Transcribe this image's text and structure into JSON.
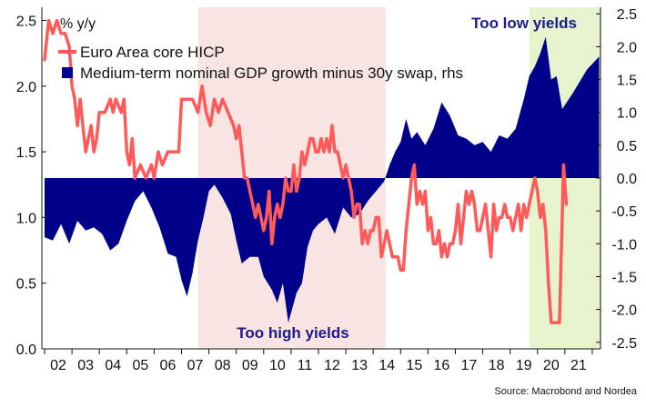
{
  "chart_data": {
    "type": "line",
    "left_axis_title": "% y/y",
    "ylim_left": [
      0.0,
      2.6
    ],
    "ylim_right": [
      -2.6,
      2.6
    ],
    "left_ticks": [
      "0.0",
      "0.5",
      "1.0",
      "1.5",
      "2.0",
      "2.5"
    ],
    "right_ticks": [
      "-2.5",
      "-2.0",
      "-1.5",
      "-1.0",
      "-0.5",
      "0.0",
      "0.5",
      "1.0",
      "1.5",
      "2.0",
      "2.5"
    ],
    "x_tick_labels": [
      "02",
      "03",
      "04",
      "05",
      "06",
      "07",
      "08",
      "09",
      "10",
      "11",
      "12",
      "13",
      "14",
      "15",
      "16",
      "17",
      "18",
      "19",
      "20",
      "21"
    ],
    "x_range": [
      2001.9,
      2022.3
    ],
    "legend_position": "top-left",
    "shaded_regions": [
      {
        "start": 2007.6,
        "end": 2014.45,
        "color": "#f9e4e4"
      },
      {
        "start": 2019.7,
        "end": 2022.3,
        "color": "#e6f3cc"
      }
    ],
    "annotations": [
      {
        "text": "Too high yields",
        "x": 2011.0,
        "y_left": 0.13,
        "color": "#1a1a8c"
      },
      {
        "text": "Too low yields",
        "x": 2019.5,
        "y_left": 2.62,
        "color": "#1a1a8c"
      }
    ],
    "source": "Source: Macrobond and Nordea",
    "series": [
      {
        "name": "Euro Area core HICP",
        "axis": "left",
        "color": "#ff5a5a",
        "style": "line",
        "points": [
          [
            2002.0,
            2.2
          ],
          [
            2002.15,
            2.5
          ],
          [
            2002.3,
            2.4
          ],
          [
            2002.45,
            2.5
          ],
          [
            2002.6,
            2.4
          ],
          [
            2002.75,
            2.4
          ],
          [
            2002.9,
            2.3
          ],
          [
            2003.0,
            2.0
          ],
          [
            2003.1,
            1.9
          ],
          [
            2003.2,
            1.7
          ],
          [
            2003.3,
            1.9
          ],
          [
            2003.4,
            1.7
          ],
          [
            2003.5,
            1.5
          ],
          [
            2003.6,
            1.6
          ],
          [
            2003.7,
            1.7
          ],
          [
            2003.8,
            1.5
          ],
          [
            2003.9,
            1.6
          ],
          [
            2004.0,
            1.8
          ],
          [
            2004.2,
            1.8
          ],
          [
            2004.4,
            1.9
          ],
          [
            2004.5,
            1.8
          ],
          [
            2004.6,
            1.9
          ],
          [
            2004.8,
            1.8
          ],
          [
            2004.9,
            1.9
          ],
          [
            2005.0,
            1.5
          ],
          [
            2005.1,
            1.4
          ],
          [
            2005.2,
            1.6
          ],
          [
            2005.3,
            1.3
          ],
          [
            2005.5,
            1.4
          ],
          [
            2005.7,
            1.3
          ],
          [
            2005.9,
            1.4
          ],
          [
            2006.0,
            1.3
          ],
          [
            2006.15,
            1.5
          ],
          [
            2006.3,
            1.4
          ],
          [
            2006.5,
            1.5
          ],
          [
            2006.7,
            1.5
          ],
          [
            2006.9,
            1.5
          ],
          [
            2007.0,
            1.9
          ],
          [
            2007.2,
            1.9
          ],
          [
            2007.4,
            1.9
          ],
          [
            2007.6,
            1.8
          ],
          [
            2007.75,
            2.0
          ],
          [
            2007.9,
            1.8
          ],
          [
            2008.05,
            1.7
          ],
          [
            2008.2,
            1.9
          ],
          [
            2008.35,
            1.8
          ],
          [
            2008.5,
            1.9
          ],
          [
            2008.7,
            1.8
          ],
          [
            2008.9,
            1.7
          ],
          [
            2009.0,
            1.6
          ],
          [
            2009.1,
            1.7
          ],
          [
            2009.2,
            1.5
          ],
          [
            2009.3,
            1.3
          ],
          [
            2009.4,
            1.3
          ],
          [
            2009.5,
            1.2
          ],
          [
            2009.6,
            1.1
          ],
          [
            2009.7,
            1.0
          ],
          [
            2009.8,
            1.1
          ],
          [
            2009.9,
            1.0
          ],
          [
            2010.0,
            0.9
          ],
          [
            2010.1,
            1.0
          ],
          [
            2010.2,
            1.2
          ],
          [
            2010.3,
            0.8
          ],
          [
            2010.4,
            1.0
          ],
          [
            2010.5,
            1.1
          ],
          [
            2010.6,
            1.0
          ],
          [
            2010.7,
            1.1
          ],
          [
            2010.8,
            1.3
          ],
          [
            2010.9,
            1.2
          ],
          [
            2011.0,
            1.2
          ],
          [
            2011.1,
            1.4
          ],
          [
            2011.2,
            1.2
          ],
          [
            2011.3,
            1.3
          ],
          [
            2011.4,
            1.5
          ],
          [
            2011.5,
            1.4
          ],
          [
            2011.6,
            1.5
          ],
          [
            2011.7,
            1.6
          ],
          [
            2011.8,
            1.6
          ],
          [
            2011.9,
            1.5
          ],
          [
            2012.0,
            1.5
          ],
          [
            2012.1,
            1.6
          ],
          [
            2012.2,
            1.5
          ],
          [
            2012.3,
            1.6
          ],
          [
            2012.4,
            1.5
          ],
          [
            2012.5,
            1.7
          ],
          [
            2012.6,
            1.5
          ],
          [
            2012.7,
            1.5
          ],
          [
            2012.8,
            1.4
          ],
          [
            2012.9,
            1.3
          ],
          [
            2013.0,
            1.4
          ],
          [
            2013.1,
            1.3
          ],
          [
            2013.2,
            1.2
          ],
          [
            2013.3,
            1.0
          ],
          [
            2013.4,
            1.1
          ],
          [
            2013.5,
            1.1
          ],
          [
            2013.6,
            0.8
          ],
          [
            2013.7,
            0.9
          ],
          [
            2013.8,
            0.8
          ],
          [
            2013.9,
            0.9
          ],
          [
            2014.0,
            0.9
          ],
          [
            2014.1,
            1.0
          ],
          [
            2014.2,
            1.0
          ],
          [
            2014.3,
            0.7
          ],
          [
            2014.4,
            0.8
          ],
          [
            2014.5,
            0.9
          ],
          [
            2014.6,
            0.8
          ],
          [
            2014.7,
            0.7
          ],
          [
            2014.8,
            0.7
          ],
          [
            2014.9,
            0.7
          ],
          [
            2015.0,
            0.6
          ],
          [
            2015.1,
            0.6
          ],
          [
            2015.2,
            0.9
          ],
          [
            2015.3,
            1.1
          ],
          [
            2015.4,
            1.3
          ],
          [
            2015.5,
            1.4
          ],
          [
            2015.6,
            1.1
          ],
          [
            2015.7,
            1.2
          ],
          [
            2015.8,
            1.1
          ],
          [
            2015.9,
            1.2
          ],
          [
            2016.0,
            0.9
          ],
          [
            2016.1,
            1.0
          ],
          [
            2016.2,
            0.8
          ],
          [
            2016.3,
            0.8
          ],
          [
            2016.4,
            0.9
          ],
          [
            2016.5,
            0.7
          ],
          [
            2016.6,
            0.8
          ],
          [
            2016.7,
            0.7
          ],
          [
            2016.8,
            0.8
          ],
          [
            2016.9,
            0.8
          ],
          [
            2017.0,
            0.9
          ],
          [
            2017.1,
            1.1
          ],
          [
            2017.2,
            0.8
          ],
          [
            2017.3,
            1.0
          ],
          [
            2017.4,
            1.2
          ],
          [
            2017.5,
            1.1
          ],
          [
            2017.6,
            1.2
          ],
          [
            2017.7,
            1.1
          ],
          [
            2017.8,
            0.9
          ],
          [
            2017.9,
            0.9
          ],
          [
            2018.0,
            1.0
          ],
          [
            2018.1,
            1.1
          ],
          [
            2018.2,
            0.9
          ],
          [
            2018.3,
            0.7
          ],
          [
            2018.4,
            1.1
          ],
          [
            2018.5,
            0.9
          ],
          [
            2018.6,
            1.0
          ],
          [
            2018.7,
            1.0
          ],
          [
            2018.8,
            1.1
          ],
          [
            2018.9,
            1.0
          ],
          [
            2019.0,
            1.0
          ],
          [
            2019.1,
            0.9
          ],
          [
            2019.2,
            1.0
          ],
          [
            2019.3,
            1.1
          ],
          [
            2019.4,
            0.9
          ],
          [
            2019.5,
            1.1
          ],
          [
            2019.6,
            1.0
          ],
          [
            2019.7,
            1.1
          ],
          [
            2019.8,
            1.2
          ],
          [
            2019.9,
            1.3
          ],
          [
            2020.0,
            1.2
          ],
          [
            2020.1,
            1.0
          ],
          [
            2020.2,
            1.1
          ],
          [
            2020.3,
            0.9
          ],
          [
            2020.4,
            0.5
          ],
          [
            2020.5,
            0.2
          ],
          [
            2020.6,
            0.2
          ],
          [
            2020.7,
            0.2
          ],
          [
            2020.8,
            0.2
          ],
          [
            2020.95,
            1.4
          ],
          [
            2021.05,
            1.1
          ]
        ]
      },
      {
        "name": "Medium-term nominal GDP growth minus 30y swap, rhs",
        "axis": "right",
        "color": "#00008b",
        "style": "area",
        "points": [
          [
            2002.0,
            -0.9
          ],
          [
            2002.3,
            -0.95
          ],
          [
            2002.6,
            -0.7
          ],
          [
            2002.9,
            -1.0
          ],
          [
            2003.2,
            -0.65
          ],
          [
            2003.5,
            -0.8
          ],
          [
            2003.8,
            -0.75
          ],
          [
            2004.1,
            -0.85
          ],
          [
            2004.4,
            -1.1
          ],
          [
            2004.7,
            -1.0
          ],
          [
            2005.0,
            -0.65
          ],
          [
            2005.3,
            -0.35
          ],
          [
            2005.6,
            -0.2
          ],
          [
            2005.9,
            -0.45
          ],
          [
            2006.2,
            -0.75
          ],
          [
            2006.5,
            -1.15
          ],
          [
            2006.8,
            -1.2
          ],
          [
            2007.0,
            -1.55
          ],
          [
            2007.2,
            -1.8
          ],
          [
            2007.4,
            -1.45
          ],
          [
            2007.6,
            -0.95
          ],
          [
            2007.8,
            -0.6
          ],
          [
            2008.0,
            -0.2
          ],
          [
            2008.2,
            -0.1
          ],
          [
            2008.5,
            -0.3
          ],
          [
            2008.8,
            -0.55
          ],
          [
            2009.0,
            -0.95
          ],
          [
            2009.2,
            -1.3
          ],
          [
            2009.5,
            -1.2
          ],
          [
            2009.8,
            -1.2
          ],
          [
            2010.0,
            -1.5
          ],
          [
            2010.3,
            -1.7
          ],
          [
            2010.5,
            -1.9
          ],
          [
            2010.7,
            -1.6
          ],
          [
            2010.9,
            -2.2
          ],
          [
            2011.0,
            -2.05
          ],
          [
            2011.2,
            -1.75
          ],
          [
            2011.4,
            -1.6
          ],
          [
            2011.6,
            -1.05
          ],
          [
            2011.8,
            -0.8
          ],
          [
            2012.0,
            -0.7
          ],
          [
            2012.3,
            -0.6
          ],
          [
            2012.6,
            -0.85
          ],
          [
            2012.9,
            -0.45
          ],
          [
            2013.2,
            -0.6
          ],
          [
            2013.5,
            -0.55
          ],
          [
            2013.8,
            -0.35
          ],
          [
            2014.1,
            -0.2
          ],
          [
            2014.4,
            -0.05
          ],
          [
            2014.6,
            0.2
          ],
          [
            2014.8,
            0.4
          ],
          [
            2015.0,
            0.55
          ],
          [
            2015.2,
            0.9
          ],
          [
            2015.4,
            0.6
          ],
          [
            2015.6,
            0.7
          ],
          [
            2015.9,
            0.5
          ],
          [
            2016.2,
            0.75
          ],
          [
            2016.5,
            1.15
          ],
          [
            2016.8,
            0.95
          ],
          [
            2017.1,
            0.65
          ],
          [
            2017.4,
            0.6
          ],
          [
            2017.7,
            0.5
          ],
          [
            2018.0,
            0.55
          ],
          [
            2018.3,
            0.4
          ],
          [
            2018.6,
            0.65
          ],
          [
            2018.9,
            0.6
          ],
          [
            2019.2,
            0.75
          ],
          [
            2019.5,
            1.2
          ],
          [
            2019.7,
            1.55
          ],
          [
            2019.9,
            1.7
          ],
          [
            2020.1,
            1.9
          ],
          [
            2020.3,
            2.15
          ],
          [
            2020.5,
            1.5
          ],
          [
            2020.7,
            1.55
          ],
          [
            2020.9,
            1.05
          ],
          [
            2021.3,
            1.3
          ],
          [
            2021.8,
            1.65
          ],
          [
            2022.25,
            1.85
          ]
        ]
      }
    ]
  }
}
